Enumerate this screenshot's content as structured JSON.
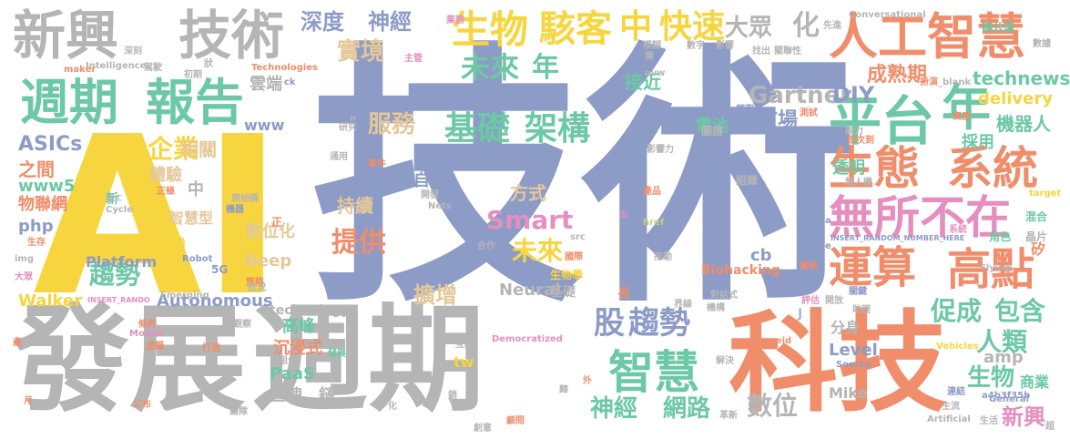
{
  "palette": {
    "blue": "#8d9bc7",
    "yellow": "#f7d53f",
    "orange": "#f08d6b",
    "green": "#6cc8a5",
    "gray": "#b5b5b5",
    "tan": "#e4c89a",
    "lime": "#b6d57d",
    "pink": "#e58fc0",
    "background": "#ffffff"
  },
  "words": [
    {
      "text": "技術",
      "color": "blue"
    },
    {
      "text": "AI",
      "color": "yellow"
    },
    {
      "text": "發展",
      "color": "gray"
    },
    {
      "text": "週期",
      "color": "gray"
    },
    {
      "text": "科技",
      "color": "orange"
    },
    {
      "text": "新興",
      "color": "gray"
    },
    {
      "text": "技術",
      "color": "gray"
    },
    {
      "text": "週期",
      "color": "green"
    },
    {
      "text": "報告",
      "color": "green"
    },
    {
      "text": "人工智慧",
      "color": "orange"
    },
    {
      "text": "平台",
      "color": "green"
    },
    {
      "text": "年",
      "color": "green"
    },
    {
      "text": "生態",
      "color": "orange"
    },
    {
      "text": "系統",
      "color": "orange"
    },
    {
      "text": "無所不在",
      "color": "pink"
    },
    {
      "text": "運算",
      "color": "orange"
    },
    {
      "text": "高點",
      "color": "orange"
    },
    {
      "text": "智慧",
      "color": "green"
    },
    {
      "text": "生物",
      "color": "yellow"
    },
    {
      "text": "駭客",
      "color": "yellow"
    },
    {
      "text": "中",
      "color": "yellow"
    },
    {
      "text": "快速",
      "color": "yellow"
    },
    {
      "text": "深度",
      "color": "blue"
    },
    {
      "text": "神經",
      "color": "blue"
    },
    {
      "text": "未來",
      "color": "green"
    },
    {
      "text": "年",
      "color": "green"
    },
    {
      "text": "大眾",
      "color": "gray"
    },
    {
      "text": "化",
      "color": "gray"
    },
    {
      "text": "實境",
      "color": "tan"
    },
    {
      "text": "成熟期",
      "color": "orange"
    },
    {
      "text": "基礎",
      "color": "green"
    },
    {
      "text": "架構",
      "color": "green"
    },
    {
      "text": "Gartner",
      "color": "gray"
    },
    {
      "text": "DIY",
      "color": "blue"
    },
    {
      "text": "technews",
      "color": "green"
    },
    {
      "text": "服務",
      "color": "tan"
    },
    {
      "text": "企業",
      "color": "yellow"
    },
    {
      "text": "趨勢",
      "color": "green"
    },
    {
      "text": "Smart",
      "color": "pink"
    },
    {
      "text": "提供",
      "color": "orange"
    },
    {
      "text": "未來",
      "color": "yellow"
    },
    {
      "text": "股",
      "color": "blue"
    },
    {
      "text": "趨勢",
      "color": "blue"
    },
    {
      "text": "神經",
      "color": "green"
    },
    {
      "text": "網路",
      "color": "green"
    },
    {
      "text": "數位",
      "color": "gray"
    },
    {
      "text": "促成",
      "color": "green"
    },
    {
      "text": "包含",
      "color": "green"
    },
    {
      "text": "人類",
      "color": "green"
    },
    {
      "text": "生物",
      "color": "green"
    },
    {
      "text": "新興",
      "color": "pink"
    },
    {
      "text": "ASICs",
      "color": "blue"
    },
    {
      "text": "www5",
      "color": "green"
    },
    {
      "text": "php",
      "color": "blue"
    },
    {
      "text": "Walker",
      "color": "yellow"
    },
    {
      "text": "Platform",
      "color": "blue"
    },
    {
      "text": "Autonomous",
      "color": "blue"
    },
    {
      "text": "擴增",
      "color": "tan"
    },
    {
      "text": "Neural",
      "color": "gray"
    },
    {
      "text": "高峰",
      "color": "green"
    },
    {
      "text": "PaaS",
      "color": "green"
    },
    {
      "text": "區塊",
      "color": "gray"
    },
    {
      "text": "鏈",
      "color": "gray"
    },
    {
      "text": "Mike",
      "color": "gray"
    },
    {
      "text": "Level",
      "color": "blue"
    },
    {
      "text": "amp",
      "color": "gray"
    },
    {
      "text": "商業",
      "color": "green"
    },
    {
      "text": "沉浸式",
      "color": "orange"
    },
    {
      "text": "數位化",
      "color": "tan"
    },
    {
      "text": "持續",
      "color": "tan"
    },
    {
      "text": "自動",
      "color": "blue"
    },
    {
      "text": "方式",
      "color": "tan"
    },
    {
      "text": "市場",
      "color": "blue"
    },
    {
      "text": "機器人",
      "color": "green"
    },
    {
      "text": "之間",
      "color": "orange"
    },
    {
      "text": "相關",
      "color": "tan"
    },
    {
      "text": "雲端",
      "color": "gray"
    },
    {
      "text": "接近",
      "color": "green"
    },
    {
      "text": "體驗",
      "color": "tan"
    },
    {
      "text": "知識",
      "color": "yellow"
    },
    {
      "text": "物聯網",
      "color": "orange"
    },
    {
      "text": "Deep",
      "color": "tan"
    },
    {
      "text": "technology",
      "color": "gray"
    },
    {
      "text": "分身",
      "color": "gray"
    },
    {
      "text": "電池",
      "color": "green"
    },
    {
      "text": "採用",
      "color": "green"
    },
    {
      "text": "透明",
      "color": "green"
    },
    {
      "text": "智慧型",
      "color": "tan"
    },
    {
      "text": "cb",
      "color": "blue"
    },
    {
      "text": "tw",
      "color": "yellow"
    },
    {
      "text": "Biohacking",
      "color": "orange"
    },
    {
      "text": "delivery",
      "color": "yellow"
    },
    {
      "text": "Conversational",
      "color": "gray"
    },
    {
      "text": "Intelligence",
      "color": "gray"
    },
    {
      "text": "Technologies",
      "color": "orange"
    },
    {
      "text": "maker",
      "color": "orange"
    },
    {
      "text": "Emerging",
      "color": "gray"
    },
    {
      "text": "Cycle",
      "color": "gray"
    },
    {
      "text": "Mobile",
      "color": "pink"
    },
    {
      "text": "Democratized",
      "color": "pink"
    },
    {
      "text": "Vehicles",
      "color": "yellow"
    },
    {
      "text": "Artificial",
      "color": "gray"
    },
    {
      "text": "Source",
      "color": "blue"
    },
    {
      "text": "Flying",
      "color": "gray"
    },
    {
      "text": "Hype",
      "color": "blue"
    },
    {
      "text": "General",
      "color": "blue"
    },
    {
      "text": "INSERT_RANDOM_NUMBER_HERE",
      "color": "blue"
    },
    {
      "text": "INSERT_RANDO",
      "color": "pink"
    },
    {
      "text": "a4b3f35b",
      "color": "blue"
    },
    {
      "text": "zoneid",
      "color": "orange"
    },
    {
      "text": "_blank",
      "color": "gray"
    },
    {
      "text": "target",
      "color": "yellow"
    },
    {
      "text": "href",
      "color": "lime"
    },
    {
      "text": "Nets",
      "color": "gray"
    },
    {
      "text": "Robot",
      "color": "blue"
    },
    {
      "text": "5G",
      "color": "blue"
    },
    {
      "text": "www",
      "color": "blue"
    },
    {
      "text": "img",
      "color": "gray"
    },
    {
      "text": "src",
      "color": "gray"
    },
    {
      "text": "avw",
      "color": "gray"
    },
    {
      "text": "ck",
      "color": "blue"
    },
    {
      "text": "辦公室",
      "color": "green"
    },
    {
      "text": "晶片",
      "color": "gray"
    },
    {
      "text": "角色",
      "color": "green"
    },
    {
      "text": "矽",
      "color": "orange"
    },
    {
      "text": "混合",
      "color": "green"
    },
    {
      "text": "扮演",
      "color": "orange"
    },
    {
      "text": "圖譜",
      "color": "gray"
    },
    {
      "text": "組織",
      "color": "gray"
    },
    {
      "text": "生活",
      "color": "gray"
    },
    {
      "text": "主流",
      "color": "gray"
    },
    {
      "text": "連結",
      "color": "blue"
    },
    {
      "text": "關鍵",
      "color": "blue"
    },
    {
      "text": "開放",
      "color": "gray"
    },
    {
      "text": "影響力",
      "color": "gray"
    },
    {
      "text": "模糊",
      "color": "gray"
    },
    {
      "text": "團隊",
      "color": "gray"
    },
    {
      "text": "公布",
      "color": "orange"
    },
    {
      "text": "發展",
      "color": "green"
    },
    {
      "text": "基礎",
      "color": "gray"
    },
    {
      "text": "長",
      "color": "orange"
    },
    {
      "text": "組合",
      "color": "gray"
    },
    {
      "text": "界線",
      "color": "gray"
    },
    {
      "text": "對話式",
      "color": "gray"
    },
    {
      "text": "機構",
      "color": "gray"
    },
    {
      "text": "生物學",
      "color": "yellow"
    },
    {
      "text": "國際",
      "color": "orange"
    },
    {
      "text": "原始碼",
      "color": "gray"
    },
    {
      "text": "機器",
      "color": "blue"
    },
    {
      "text": "正",
      "color": "orange"
    },
    {
      "text": "正極",
      "color": "orange"
    },
    {
      "text": "新",
      "color": "green"
    },
    {
      "text": "中",
      "color": "gray"
    },
    {
      "text": "J",
      "color": "gray"
    },
    {
      "text": "五",
      "color": "pink"
    },
    {
      "text": "大眾",
      "color": "pink"
    },
    {
      "text": "生存",
      "color": "orange"
    },
    {
      "text": "虛擬",
      "color": "orange"
    },
    {
      "text": "推動",
      "color": "gray"
    },
    {
      "text": "互動",
      "color": "gray"
    },
    {
      "text": "解決",
      "color": "gray"
    },
    {
      "text": "顧問",
      "color": "orange"
    },
    {
      "text": "革新",
      "color": "gray"
    },
    {
      "text": "無人機",
      "color": "gray"
    },
    {
      "text": "能力",
      "color": "gray"
    },
    {
      "text": "首次到",
      "color": "orange"
    },
    {
      "text": "駕駛",
      "color": "gray"
    },
    {
      "text": "研究",
      "color": "gray"
    },
    {
      "text": "初期",
      "color": "gray"
    },
    {
      "text": "主管",
      "color": "pink"
    },
    {
      "text": "業務",
      "color": "pink"
    },
    {
      "text": "產品",
      "color": "orange"
    },
    {
      "text": "觀察",
      "color": "gray"
    },
    {
      "text": "打造",
      "color": "orange"
    },
    {
      "text": "條件",
      "color": "orange"
    },
    {
      "text": "策略",
      "color": "orange"
    },
    {
      "text": "評估",
      "color": "pink"
    },
    {
      "text": "助理",
      "color": "gray"
    },
    {
      "text": "高度",
      "color": "orange"
    },
    {
      "text": "數據",
      "color": "gray"
    },
    {
      "text": "先進",
      "color": "gray"
    },
    {
      "text": "員工",
      "color": "gray"
    },
    {
      "text": "影響",
      "color": "gray"
    },
    {
      "text": "找出",
      "color": "gray"
    },
    {
      "text": "關聯性",
      "color": "gray"
    },
    {
      "text": "通用",
      "color": "gray"
    },
    {
      "text": "事件",
      "color": "orange"
    },
    {
      "text": "開發",
      "color": "gray"
    },
    {
      "text": "合作",
      "color": "gray"
    },
    {
      "text": "測試",
      "color": "orange"
    },
    {
      "text": "深刻",
      "color": "gray"
    },
    {
      "text": "顧客",
      "color": "blue"
    },
    {
      "text": "系統",
      "color": "pink"
    },
    {
      "text": "需",
      "color": "gray"
    },
    {
      "text": "數字",
      "color": "gray"
    },
    {
      "text": "資訊",
      "color": "orange"
    },
    {
      "text": "創意",
      "color": "gray"
    },
    {
      "text": "狀況",
      "color": "gray"
    },
    {
      "text": "化",
      "color": "gray"
    },
    {
      "text": "外",
      "color": "orange"
    },
    {
      "text": "月",
      "color": "orange"
    },
    {
      "text": "產",
      "color": "orange"
    },
    {
      "text": "n",
      "color": "gray"
    },
    {
      "text": "a",
      "color": "blue"
    },
    {
      "text": "超",
      "color": "gray"
    },
    {
      "text": "狀",
      "color": "gray"
    },
    {
      "text": "歸",
      "color": "gray"
    },
    {
      "text": "銷",
      "color": "gray"
    },
    {
      "text": "網",
      "color": "gray"
    }
  ]
}
